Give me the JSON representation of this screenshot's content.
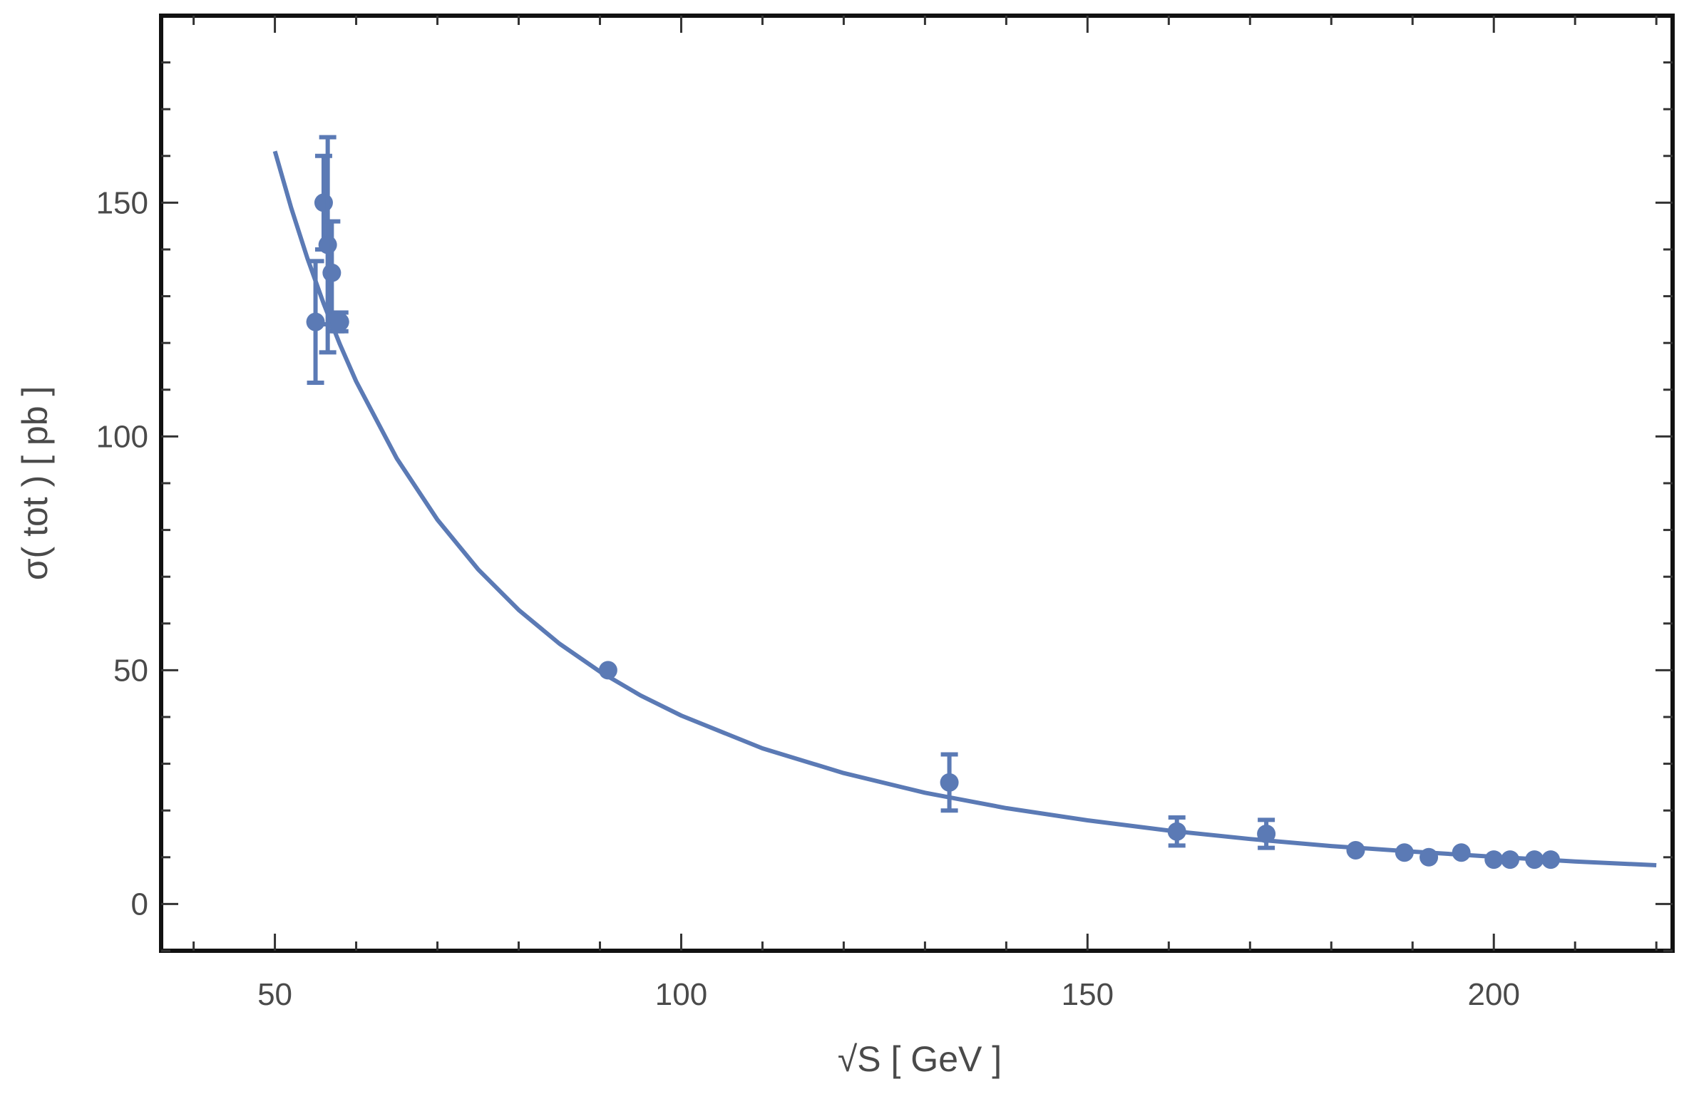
{
  "chart_data": {
    "type": "scatter",
    "xlabel": "√S [ GeV ]",
    "ylabel": "σ( tot ) [ pb ]",
    "xlim": [
      36,
      222
    ],
    "ylim": [
      -10,
      190
    ],
    "x_ticks": [
      50,
      100,
      150,
      200
    ],
    "y_ticks": [
      0,
      50,
      100,
      150
    ],
    "grid": false,
    "color": "#5b7ab5",
    "points": [
      {
        "x": 55,
        "y": 124.5,
        "err": 13
      },
      {
        "x": 56,
        "y": 150,
        "err": 10
      },
      {
        "x": 56.5,
        "y": 141,
        "err": 23
      },
      {
        "x": 57,
        "y": 135,
        "err": 11
      },
      {
        "x": 57.5,
        "y": 124.5,
        "err": 2
      },
      {
        "x": 58,
        "y": 124.5,
        "err": 2
      },
      {
        "x": 91,
        "y": 50,
        "err": 0.5
      },
      {
        "x": 133,
        "y": 26,
        "err": 6
      },
      {
        "x": 161,
        "y": 15.5,
        "err": 3
      },
      {
        "x": 172,
        "y": 15,
        "err": 3
      },
      {
        "x": 183,
        "y": 11.5,
        "err": 0.5
      },
      {
        "x": 189,
        "y": 11,
        "err": 0.5
      },
      {
        "x": 192,
        "y": 10,
        "err": 0.5
      },
      {
        "x": 196,
        "y": 11,
        "err": 0.5
      },
      {
        "x": 200,
        "y": 9.5,
        "err": 0.5
      },
      {
        "x": 202,
        "y": 9.5,
        "err": 0.5
      },
      {
        "x": 205,
        "y": 9.5,
        "err": 0.5
      },
      {
        "x": 207,
        "y": 9.5,
        "err": 0.5
      }
    ],
    "fit_curve": {
      "x": [
        50,
        52,
        54,
        56,
        58,
        60,
        65,
        70,
        75,
        80,
        85,
        90,
        95,
        100,
        110,
        120,
        130,
        140,
        150,
        160,
        170,
        180,
        190,
        200,
        210,
        220
      ],
      "y": [
        161,
        148.9,
        138.1,
        128.4,
        119.7,
        111.8,
        95.3,
        82.2,
        71.6,
        62.9,
        55.7,
        49.7,
        44.6,
        40.3,
        33.3,
        28.0,
        23.8,
        20.5,
        17.9,
        15.7,
        13.9,
        12.4,
        11.2,
        10.1,
        9.1,
        8.3
      ]
    }
  }
}
